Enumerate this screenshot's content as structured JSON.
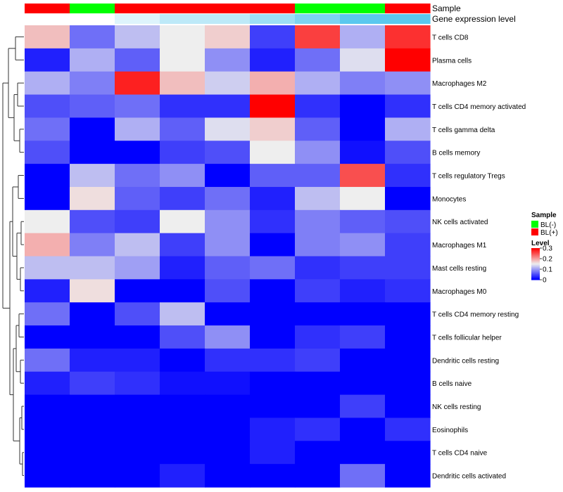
{
  "chart_data": {
    "type": "heatmap",
    "annotations": {
      "sample_label": "Sample",
      "sample_values": [
        "BL(+)",
        "BL(-)",
        "BL(+)",
        "BL(+)",
        "BL(+)",
        "BL(+)",
        "BL(-)",
        "BL(-)",
        "BL(+)"
      ],
      "expression_label": "Gene expression level",
      "expression_values": [
        0.0,
        0.0,
        0.1,
        0.2,
        0.2,
        0.3,
        0.4,
        0.5,
        0.5
      ]
    },
    "rows": [
      "T cells CD8",
      "Plasma cells",
      "Macrophages M2",
      "T cells CD4 memory activated",
      "T cells gamma delta",
      "B cells memory",
      "T cells regulatory  Tregs",
      "Monocytes",
      "NK cells activated",
      "Macrophages M1",
      "Mast cells resting",
      "Macrophages M0",
      "T cells CD4 memory resting",
      "T cells follicular helper",
      "Dendritic cells resting",
      "B cells naive",
      "NK cells resting",
      "Eosinophils",
      "T cells CD4 naive",
      "Dendritic cells activated"
    ],
    "values": [
      [
        0.18,
        0.07,
        0.12,
        0.15,
        0.17,
        0.04,
        0.26,
        0.11,
        0.27
      ],
      [
        0.02,
        0.11,
        0.06,
        0.15,
        0.09,
        0.02,
        0.07,
        0.14,
        0.3
      ],
      [
        0.11,
        0.08,
        0.28,
        0.18,
        0.13,
        0.19,
        0.11,
        0.08,
        0.09
      ],
      [
        0.05,
        0.06,
        0.07,
        0.03,
        0.03,
        0.3,
        0.03,
        0.0,
        0.03
      ],
      [
        0.07,
        0.0,
        0.11,
        0.06,
        0.14,
        0.17,
        0.06,
        0.0,
        0.11
      ],
      [
        0.05,
        0.0,
        0.0,
        0.04,
        0.05,
        0.15,
        0.09,
        0.01,
        0.05
      ],
      [
        0.0,
        0.12,
        0.07,
        0.09,
        0.0,
        0.06,
        0.06,
        0.25,
        0.03
      ],
      [
        0.0,
        0.16,
        0.06,
        0.04,
        0.07,
        0.02,
        0.12,
        0.15,
        0.0
      ],
      [
        0.15,
        0.05,
        0.04,
        0.15,
        0.09,
        0.03,
        0.08,
        0.06,
        0.05
      ],
      [
        0.19,
        0.08,
        0.12,
        0.04,
        0.09,
        0.0,
        0.08,
        0.09,
        0.04
      ],
      [
        0.12,
        0.12,
        0.1,
        0.02,
        0.06,
        0.07,
        0.03,
        0.04,
        0.04
      ],
      [
        0.02,
        0.16,
        0.0,
        0.0,
        0.05,
        0.0,
        0.04,
        0.02,
        0.03
      ],
      [
        0.07,
        0.0,
        0.05,
        0.12,
        0.0,
        0.0,
        0.0,
        0.0,
        0.0
      ],
      [
        0.0,
        0.0,
        0.0,
        0.05,
        0.09,
        0.0,
        0.03,
        0.04,
        0.0
      ],
      [
        0.07,
        0.02,
        0.02,
        0.0,
        0.03,
        0.03,
        0.04,
        0.0,
        0.0
      ],
      [
        0.02,
        0.04,
        0.03,
        0.01,
        0.01,
        0.0,
        0.0,
        0.0,
        0.0
      ],
      [
        0.0,
        0.0,
        0.0,
        0.0,
        0.0,
        0.0,
        0.0,
        0.04,
        0.0
      ],
      [
        0.0,
        0.0,
        0.0,
        0.0,
        0.0,
        0.02,
        0.03,
        0.0,
        0.03
      ],
      [
        0.0,
        0.0,
        0.0,
        0.0,
        0.0,
        0.02,
        0.0,
        0.0,
        0.0
      ],
      [
        0.0,
        0.0,
        0.0,
        0.02,
        0.0,
        0.0,
        0.0,
        0.07,
        0.0
      ]
    ],
    "legend": {
      "sample_title": "Sample",
      "sample_entries": [
        {
          "label": "BL(-)",
          "color": "#00ff00"
        },
        {
          "label": "BL(+)",
          "color": "#ff0000"
        }
      ],
      "level_title": "Level",
      "level_ticks": [
        "0.3",
        "0.2",
        "0.1",
        "0"
      ],
      "level_range": [
        0,
        0.3
      ]
    },
    "colors": {
      "low": "#0000ff",
      "mid": "#eeeeee",
      "high": "#ff0000",
      "expression_low": "#ffffff",
      "expression_high": "#5bc8ee"
    },
    "dendrogram": "rows"
  }
}
